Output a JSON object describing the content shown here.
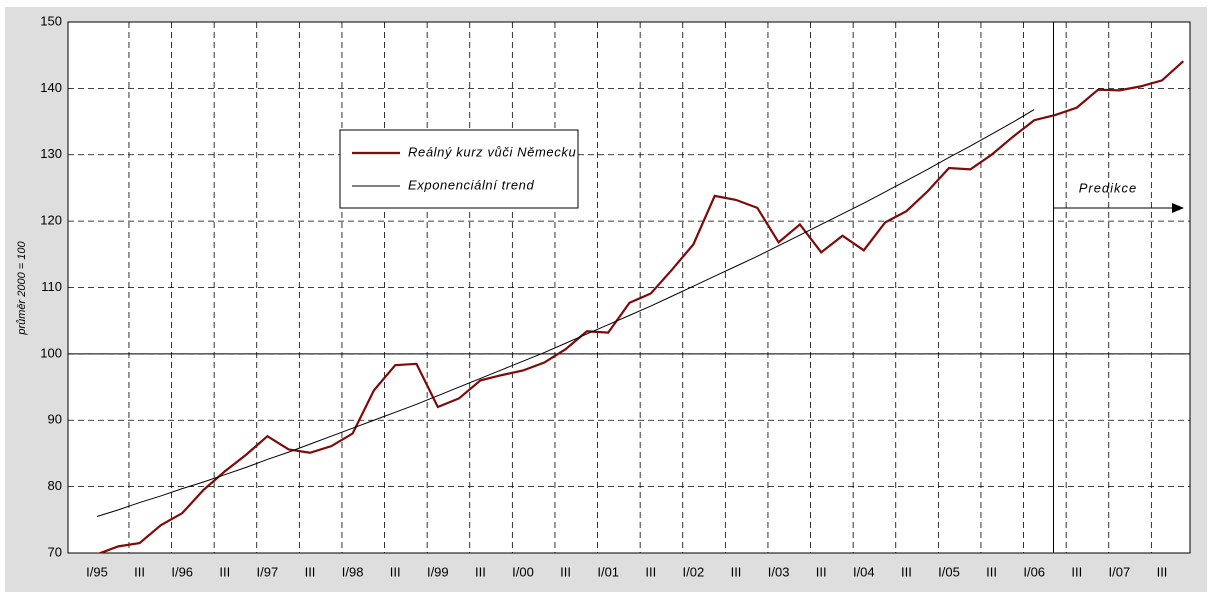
{
  "chart_data": {
    "type": "line",
    "ylabel": "průměr 2000 = 100",
    "annotation": "Predikce",
    "categories": [
      "I/95",
      null,
      "III",
      null,
      "I/96",
      null,
      "III",
      null,
      "I/97",
      null,
      "III",
      null,
      "I/98",
      null,
      "III",
      null,
      "I/99",
      null,
      "III",
      null,
      "I/00",
      null,
      "III",
      null,
      "I/01",
      null,
      "III",
      null,
      "I/02",
      null,
      "III",
      null,
      "I/03",
      null,
      "III",
      null,
      "I/04",
      null,
      "III",
      null,
      "I/05",
      null,
      "III",
      null,
      "I/06",
      null,
      "III",
      null,
      "I/07",
      null,
      "III",
      null
    ],
    "series": [
      {
        "name": "Reálný kurz vůči Německu",
        "color": "#7f0a0a",
        "values": [
          69.8,
          71,
          71.5,
          74.2,
          76,
          79.5,
          82.3,
          84.8,
          87.6,
          85.6,
          85.1,
          86.1,
          88,
          94.5,
          98.3,
          98.5,
          92,
          93.3,
          96,
          96.8,
          97.5,
          98.7,
          100.7,
          103.4,
          103.2,
          107.7,
          109.1,
          112.7,
          116.5,
          123.8,
          123.2,
          122,
          116.8,
          119.5,
          115.3,
          117.8,
          115.6,
          119.8,
          121.5,
          124.5,
          128,
          127.8,
          130,
          132.7,
          135.2,
          136,
          137.1,
          139.8,
          139.7,
          140.3,
          141.2,
          144.1
        ]
      },
      {
        "name": "Exponenciální trend",
        "color": "#000000",
        "values": [
          75.5,
          76.5,
          77.6,
          78.6,
          79.7,
          80.7,
          81.8,
          82.9,
          84.1,
          85.2,
          86.4,
          87.6,
          88.8,
          90.0,
          91.2,
          92.4,
          93.7,
          95.0,
          96.3,
          97.6,
          98.9,
          100.2,
          101.6,
          103.0,
          104.4,
          105.8,
          107.2,
          108.7,
          110.2,
          111.7,
          113.2,
          114.7,
          116.3,
          117.9,
          119.5,
          121.1,
          122.7,
          124.4,
          126.1,
          127.8,
          129.6,
          131.3,
          133.1,
          134.9,
          136.8,
          null,
          null,
          null,
          null,
          null,
          null,
          null
        ]
      }
    ],
    "ylim": [
      70,
      150
    ],
    "yticks": [
      70,
      80,
      90,
      100,
      110,
      120,
      130,
      140,
      150
    ],
    "reference_line": 100,
    "grid": true
  }
}
